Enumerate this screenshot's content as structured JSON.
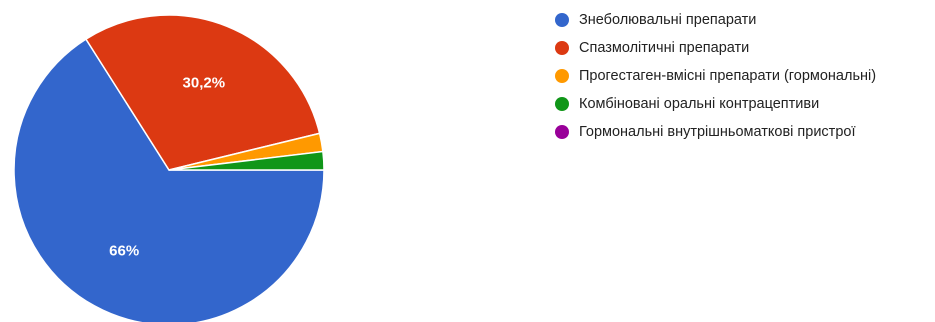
{
  "chart_data": {
    "type": "pie",
    "categories": [
      "Знеболювальні препарати",
      "Спазмолітичні препарати",
      "Прогестаген-вмісні препарати (гормональні)",
      "Комбіновані оральні контрацептиви",
      "Гормональні внутрішньоматкові пристрої"
    ],
    "values": [
      66,
      30.2,
      1.9,
      1.9,
      0
    ],
    "data_labels": [
      "66%",
      "30,2%",
      "",
      "",
      ""
    ],
    "colors": [
      "#3366cc",
      "#dc3912",
      "#ff9900",
      "#109618",
      "#990099"
    ],
    "legend_position": "right"
  }
}
